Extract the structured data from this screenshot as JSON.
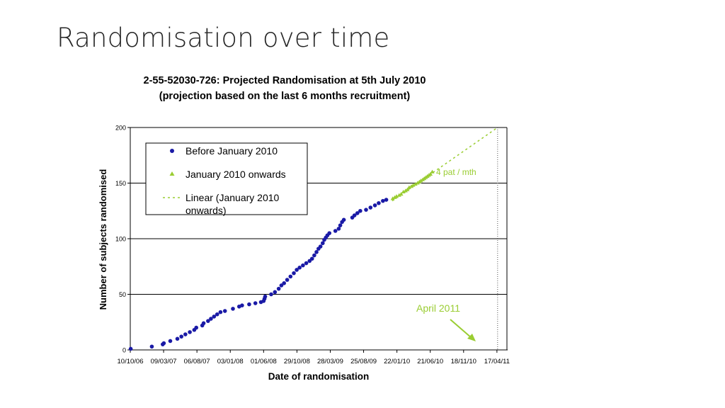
{
  "slide": {
    "title": "Randomisation over time"
  },
  "colors": {
    "before": "#1a1aa6",
    "after": "#9acd32",
    "grid": "#000000"
  },
  "chart_data": {
    "type": "scatter",
    "title": "2-55-52030-726: Projected Randomisation at 5th July 2010",
    "subtitle": "(projection based on the last 6 months recruitment)",
    "xlabel": "Date of randomisation",
    "ylabel": "Number of subjects randomised",
    "x_scale": "date",
    "xlim": [
      "2006-10-10",
      "2011-06-01"
    ],
    "ylim": [
      0,
      200
    ],
    "yticks": [
      0,
      50,
      100,
      150,
      200
    ],
    "xticks": [
      "2006-10-10",
      "2007-03-09",
      "2007-08-06",
      "2008-01-03",
      "2008-06-01",
      "2008-10-29",
      "2009-03-28",
      "2009-08-25",
      "2010-01-22",
      "2010-06-21",
      "2010-11-18",
      "2011-04-17"
    ],
    "xtick_labels": [
      "10/10/06",
      "09/03/07",
      "06/08/07",
      "03/01/08",
      "01/06/08",
      "29/10/08",
      "28/03/09",
      "25/08/09",
      "22/01/10",
      "21/06/10",
      "18/11/10",
      "17/04/11"
    ],
    "grid": "horizontal",
    "legend_position": "top-left",
    "legend": [
      "Before January 2010",
      "January 2010 onwards",
      "Linear (January 2010 onwards)"
    ],
    "annotations": [
      {
        "text": "4 pat / mth"
      },
      {
        "text": "April 2011"
      }
    ],
    "reference_line": {
      "x": "2011-04-20",
      "style": "dotted"
    },
    "series": [
      {
        "name": "Before January 2010",
        "marker": "circle",
        "points": [
          [
            "2006-10-12",
            1
          ],
          [
            "2007-01-15",
            3
          ],
          [
            "2007-03-05",
            5
          ],
          [
            "2007-03-10",
            6
          ],
          [
            "2007-04-08",
            8
          ],
          [
            "2007-05-10",
            10
          ],
          [
            "2007-05-28",
            12
          ],
          [
            "2007-06-15",
            14
          ],
          [
            "2007-07-05",
            16
          ],
          [
            "2007-07-25",
            18
          ],
          [
            "2007-08-03",
            20
          ],
          [
            "2007-08-30",
            22
          ],
          [
            "2007-09-05",
            24
          ],
          [
            "2007-09-25",
            26
          ],
          [
            "2007-10-08",
            28
          ],
          [
            "2007-10-22",
            30
          ],
          [
            "2007-11-05",
            32
          ],
          [
            "2007-11-20",
            34
          ],
          [
            "2007-12-10",
            35
          ],
          [
            "2008-01-15",
            37
          ],
          [
            "2008-02-12",
            39
          ],
          [
            "2008-02-25",
            40
          ],
          [
            "2008-03-28",
            41
          ],
          [
            "2008-04-25",
            42
          ],
          [
            "2008-05-20",
            43
          ],
          [
            "2008-06-01",
            44
          ],
          [
            "2008-06-05",
            46
          ],
          [
            "2008-06-08",
            48
          ],
          [
            "2008-07-05",
            50
          ],
          [
            "2008-07-22",
            52
          ],
          [
            "2008-08-08",
            55
          ],
          [
            "2008-08-20",
            58
          ],
          [
            "2008-09-01",
            60
          ],
          [
            "2008-09-15",
            63
          ],
          [
            "2008-09-30",
            66
          ],
          [
            "2008-10-15",
            69
          ],
          [
            "2008-10-28",
            72
          ],
          [
            "2008-11-10",
            74
          ],
          [
            "2008-11-25",
            76
          ],
          [
            "2008-12-10",
            78
          ],
          [
            "2008-12-25",
            80
          ],
          [
            "2009-01-05",
            82
          ],
          [
            "2009-01-15",
            85
          ],
          [
            "2009-01-25",
            88
          ],
          [
            "2009-02-03",
            91
          ],
          [
            "2009-02-12",
            93
          ],
          [
            "2009-02-22",
            96
          ],
          [
            "2009-03-01",
            99
          ],
          [
            "2009-03-08",
            101
          ],
          [
            "2009-03-15",
            103
          ],
          [
            "2009-03-24",
            105
          ],
          [
            "2009-04-20",
            107
          ],
          [
            "2009-05-05",
            109
          ],
          [
            "2009-05-12",
            112
          ],
          [
            "2009-05-20",
            115
          ],
          [
            "2009-05-28",
            117
          ],
          [
            "2009-07-05",
            119
          ],
          [
            "2009-07-15",
            121
          ],
          [
            "2009-07-28",
            123
          ],
          [
            "2009-08-10",
            125
          ],
          [
            "2009-09-05",
            126
          ],
          [
            "2009-09-25",
            128
          ],
          [
            "2009-10-15",
            130
          ],
          [
            "2009-11-01",
            132
          ],
          [
            "2009-11-20",
            134
          ],
          [
            "2009-12-05",
            135
          ]
        ]
      },
      {
        "name": "January 2010 onwards",
        "marker": "triangle",
        "points": [
          [
            "2010-01-03",
            136
          ],
          [
            "2010-01-12",
            137
          ],
          [
            "2010-01-20",
            138
          ],
          [
            "2010-02-01",
            139
          ],
          [
            "2010-02-10",
            140
          ],
          [
            "2010-02-20",
            142
          ],
          [
            "2010-03-02",
            143
          ],
          [
            "2010-03-10",
            144
          ],
          [
            "2010-03-18",
            146
          ],
          [
            "2010-03-28",
            147
          ],
          [
            "2010-04-05",
            148
          ],
          [
            "2010-04-15",
            149
          ],
          [
            "2010-04-25",
            150
          ],
          [
            "2010-05-03",
            151
          ],
          [
            "2010-05-10",
            152
          ],
          [
            "2010-05-18",
            153
          ],
          [
            "2010-05-25",
            154
          ],
          [
            "2010-06-01",
            155
          ],
          [
            "2010-06-08",
            156
          ],
          [
            "2010-06-15",
            157
          ],
          [
            "2010-06-22",
            158
          ],
          [
            "2010-06-30",
            160
          ]
        ]
      },
      {
        "name": "Linear (January 2010 onwards)",
        "style": "dashed",
        "points": [
          [
            "2010-01-01",
            134
          ],
          [
            "2011-04-20",
            200
          ]
        ]
      }
    ]
  }
}
